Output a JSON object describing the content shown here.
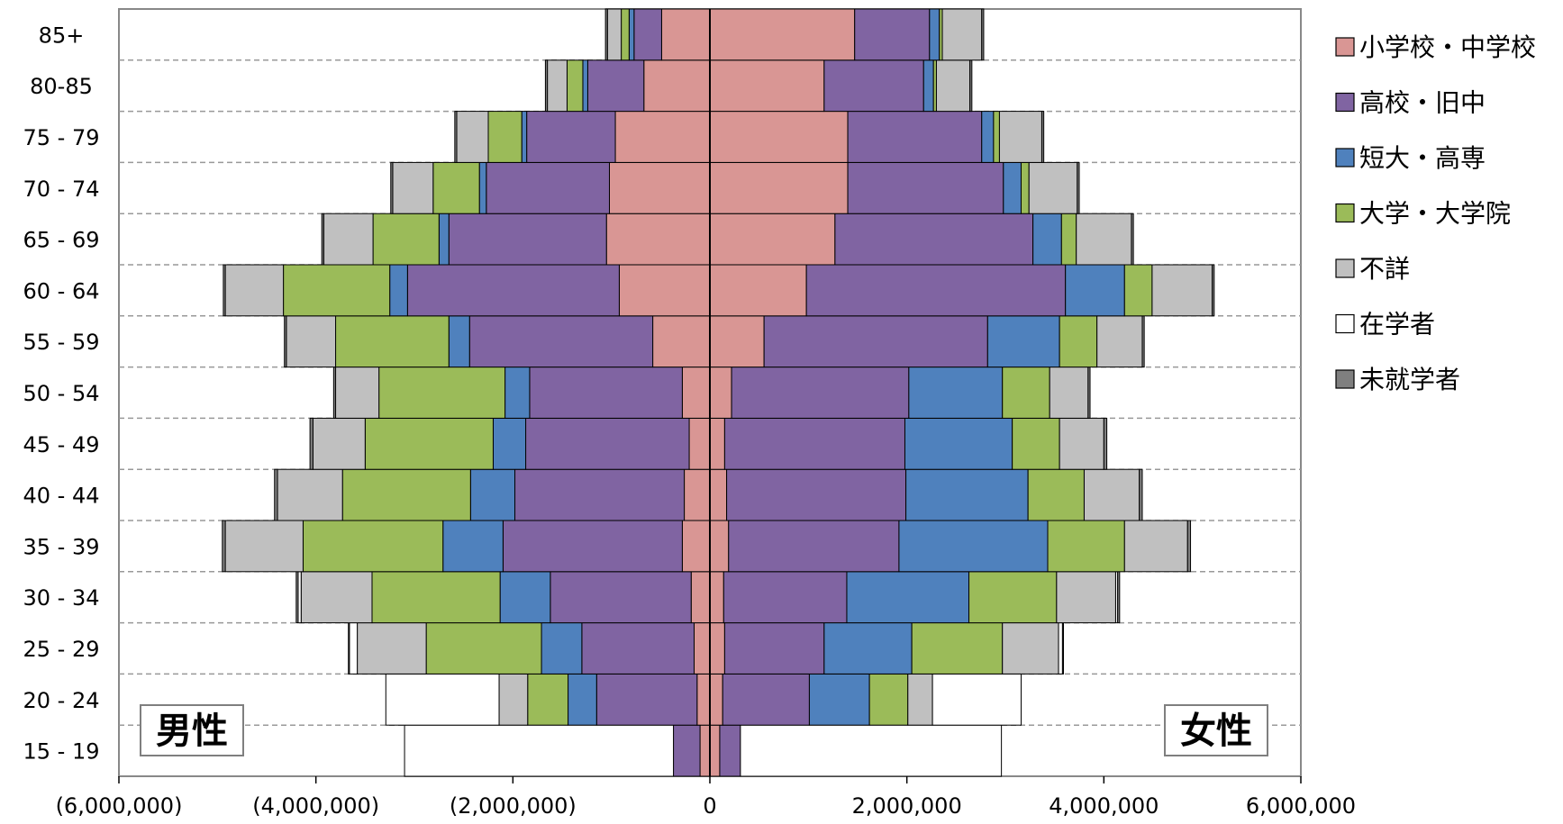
{
  "chart_data": {
    "type": "bar",
    "subtype": "population-pyramid-stacked",
    "age_groups": [
      "15 - 19",
      "20 - 24",
      "25 - 29",
      "30 - 34",
      "35 - 39",
      "40 - 44",
      "45 - 49",
      "50 - 54",
      "55 - 59",
      "60 - 64",
      "65 - 69",
      "70 - 74",
      "75 - 79",
      "80-85",
      "85+"
    ],
    "xlim": [
      -6000000,
      6000000
    ],
    "xticks": [
      -6000000,
      -4000000,
      -2000000,
      0,
      2000000,
      4000000,
      6000000
    ],
    "xtick_labels": [
      "(6,000,000)",
      "(4,000,000)",
      "(2,000,000)",
      "0",
      "2,000,000",
      "4,000,000",
      "6,000,000"
    ],
    "grid": "horizontal dashed",
    "legend_position": "right",
    "panel_labels": {
      "left": "男性",
      "right": "女性"
    },
    "series": [
      {
        "name": "小学校・中学校",
        "color": "#d99694",
        "male": [
          100000,
          130000,
          160000,
          190000,
          280000,
          260000,
          210000,
          280000,
          580000,
          920000,
          1050000,
          1020000,
          960000,
          670000,
          490000
        ],
        "female": [
          100000,
          130000,
          150000,
          140000,
          190000,
          170000,
          150000,
          220000,
          550000,
          980000,
          1270000,
          1400000,
          1400000,
          1160000,
          1470000
        ]
      },
      {
        "name": "高校・旧中",
        "color": "#8064a2",
        "male": [
          270000,
          1020000,
          1140000,
          1430000,
          1820000,
          1720000,
          1660000,
          1550000,
          1860000,
          2150000,
          1600000,
          1250000,
          900000,
          570000,
          280000
        ],
        "female": [
          210000,
          880000,
          1010000,
          1250000,
          1730000,
          1820000,
          1830000,
          1800000,
          2270000,
          2630000,
          2010000,
          1580000,
          1360000,
          1010000,
          760000
        ]
      },
      {
        "name": "短大・高専",
        "color": "#4f81bd",
        "male": [
          0,
          290000,
          410000,
          510000,
          610000,
          450000,
          330000,
          250000,
          210000,
          180000,
          100000,
          70000,
          50000,
          50000,
          50000
        ],
        "female": [
          0,
          610000,
          890000,
          1240000,
          1510000,
          1240000,
          1090000,
          950000,
          730000,
          600000,
          290000,
          180000,
          120000,
          100000,
          100000
        ]
      },
      {
        "name": "大学・大学院",
        "color": "#9bbb59",
        "male": [
          0,
          410000,
          1170000,
          1300000,
          1420000,
          1300000,
          1300000,
          1280000,
          1150000,
          1080000,
          670000,
          470000,
          340000,
          160000,
          80000
        ],
        "female": [
          0,
          390000,
          920000,
          890000,
          780000,
          570000,
          480000,
          480000,
          380000,
          280000,
          150000,
          80000,
          60000,
          30000,
          30000
        ]
      },
      {
        "name": "不詳",
        "color": "#c0c0c0",
        "male": [
          0,
          290000,
          700000,
          720000,
          790000,
          660000,
          530000,
          440000,
          500000,
          590000,
          500000,
          410000,
          320000,
          200000,
          140000
        ],
        "female": [
          0,
          250000,
          570000,
          600000,
          640000,
          560000,
          450000,
          390000,
          460000,
          610000,
          560000,
          490000,
          430000,
          340000,
          400000
        ]
      },
      {
        "name": "在学者",
        "color": "#ffffff",
        "male": [
          2730000,
          1150000,
          80000,
          30000,
          0,
          0,
          0,
          0,
          0,
          0,
          0,
          0,
          0,
          0,
          0
        ],
        "female": [
          2650000,
          900000,
          40000,
          20000,
          0,
          0,
          0,
          0,
          0,
          0,
          0,
          0,
          0,
          0,
          0
        ]
      },
      {
        "name": "未就学者",
        "color": "#7f7f7f",
        "male": [
          0,
          0,
          10000,
          20000,
          30000,
          30000,
          30000,
          20000,
          20000,
          20000,
          20000,
          20000,
          20000,
          20000,
          20000
        ],
        "female": [
          0,
          0,
          10000,
          20000,
          30000,
          30000,
          30000,
          20000,
          20000,
          20000,
          20000,
          20000,
          20000,
          20000,
          20000
        ]
      }
    ]
  }
}
